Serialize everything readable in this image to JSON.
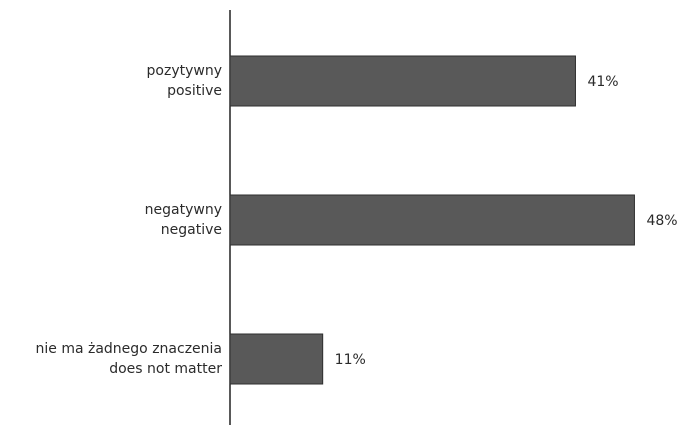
{
  "chart_data": {
    "type": "bar",
    "orientation": "horizontal",
    "categories": [
      [
        "pozytywny",
        "positive"
      ],
      [
        "negatywny",
        "negative"
      ],
      [
        "nie ma żadnego znaczenia",
        "does not matter"
      ]
    ],
    "values": [
      41,
      48,
      11
    ],
    "value_labels": [
      "41%",
      "48%",
      "11%"
    ],
    "xlim": [
      0,
      54
    ],
    "grid": false,
    "bar_color": "#595959",
    "bar_stroke": "#2e2e2e",
    "axis_color": "#222222"
  }
}
